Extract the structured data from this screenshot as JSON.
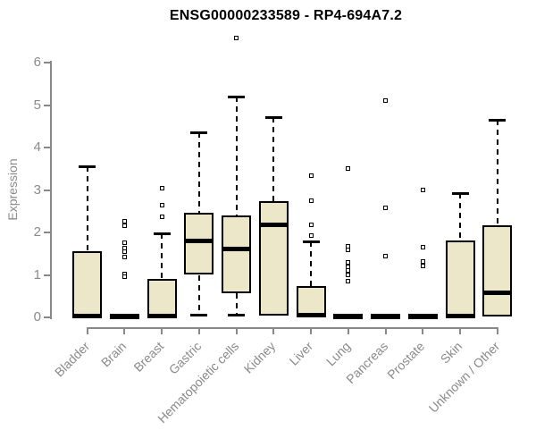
{
  "chart_data": {
    "type": "boxplot",
    "title": "ENSG00000233589 - RP4-694A7.2",
    "xlabel": "",
    "ylabel": "Expression",
    "ylim": [
      0,
      6.7
    ],
    "yticks": [
      0,
      1,
      2,
      3,
      4,
      5,
      6
    ],
    "grid": false,
    "legend": false,
    "colors": {
      "box_fill": "#EDE7C9",
      "box_border": "#000000",
      "median": "#000000",
      "axis": "#888888",
      "axis_text": "#8a8a8a",
      "title_text": "#000000"
    },
    "categories": [
      "Bladder",
      "Brain",
      "Breast",
      "Gastric",
      "Hematopoietic cells",
      "Kidney",
      "Liver",
      "Lung",
      "Pancreas",
      "Prostate",
      "Skin",
      "Unknown / Other"
    ],
    "series": [
      {
        "label": "Bladder",
        "whislo": 0,
        "q1": 0.02,
        "med": 0.04,
        "q3": 1.55,
        "whishi": 3.55,
        "outliers": []
      },
      {
        "label": "Brain",
        "whislo": 0,
        "q1": 0.01,
        "med": 0.02,
        "q3": 0.03,
        "whishi": 0.03,
        "outliers": [
          2.27,
          2.15,
          1.75,
          1.64,
          1.54,
          1.43,
          1.03,
          0.95
        ]
      },
      {
        "label": "Breast",
        "whislo": 0,
        "q1": 0.02,
        "med": 0.04,
        "q3": 0.9,
        "whishi": 1.97,
        "outliers": [
          3.05,
          2.65,
          2.36
        ]
      },
      {
        "label": "Gastric",
        "whislo": 0.05,
        "q1": 1.0,
        "med": 1.8,
        "q3": 2.47,
        "whishi": 4.35,
        "outliers": []
      },
      {
        "label": "Hematopoietic cells",
        "whislo": 0.05,
        "q1": 0.57,
        "med": 1.62,
        "q3": 2.4,
        "whishi": 5.2,
        "outliers": [
          6.57
        ]
      },
      {
        "label": "Kidney",
        "whislo": 0,
        "q1": 0.05,
        "med": 2.18,
        "q3": 2.73,
        "whishi": 4.72,
        "outliers": []
      },
      {
        "label": "Liver",
        "whislo": 0,
        "q1": 0.02,
        "med": 0.05,
        "q3": 0.73,
        "whishi": 1.79,
        "outliers": [
          3.33,
          2.75,
          2.17,
          1.93
        ]
      },
      {
        "label": "Lung",
        "whislo": 0,
        "q1": 0.01,
        "med": 0.02,
        "q3": 0.03,
        "whishi": 0.03,
        "outliers": [
          3.5,
          1.67,
          1.6,
          1.3,
          1.2,
          1.1,
          1.0,
          0.85
        ]
      },
      {
        "label": "Pancreas",
        "whislo": 0,
        "q1": 0.01,
        "med": 0.02,
        "q3": 0.03,
        "whishi": 0.03,
        "outliers": [
          5.1,
          2.58,
          1.45
        ]
      },
      {
        "label": "Prostate",
        "whislo": 0,
        "q1": 0.01,
        "med": 0.02,
        "q3": 0.03,
        "whishi": 0.03,
        "outliers": [
          3.0,
          1.65,
          1.32,
          1.22
        ]
      },
      {
        "label": "Skin",
        "whislo": 0,
        "q1": 0.02,
        "med": 0.04,
        "q3": 1.82,
        "whishi": 2.93,
        "outliers": []
      },
      {
        "label": "Unknown / Other",
        "whislo": 0,
        "q1": 0.02,
        "med": 0.57,
        "q3": 2.17,
        "whishi": 4.65,
        "outliers": []
      }
    ]
  }
}
